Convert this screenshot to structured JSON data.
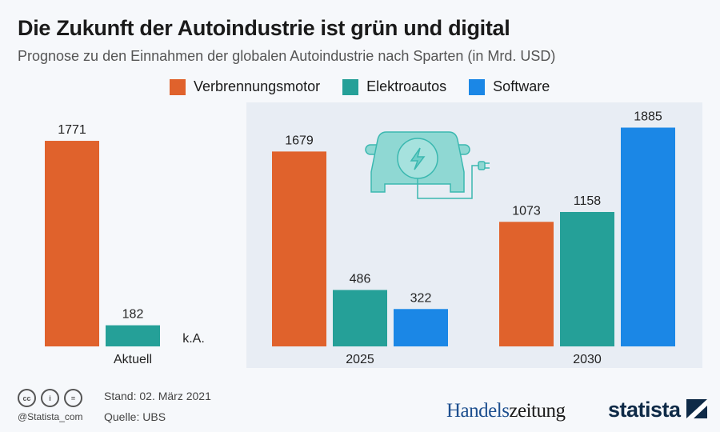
{
  "header": {
    "title": "Die Zukunft der Autoindustrie ist grün und digital",
    "subtitle": "Prognose zu den Einnahmen der globalen Autoindustrie nach Sparten (in Mrd. USD)"
  },
  "chart_data": {
    "type": "bar",
    "categories": [
      "Aktuell",
      "2025",
      "2030"
    ],
    "series": [
      {
        "name": "Verbrennungsmotor",
        "color": "#e0622c",
        "values": [
          1771,
          1679,
          1073
        ]
      },
      {
        "name": "Elektroautos",
        "color": "#25a098",
        "values": [
          182,
          486,
          1158
        ]
      },
      {
        "name": "Software",
        "color": "#1b87e6",
        "values": [
          null,
          322,
          1885
        ]
      }
    ],
    "missing_label": "k.A.",
    "ylim": [
      0,
      1885
    ],
    "grid": false,
    "legend": "top",
    "highlight_panel_color": "#e8edf4"
  },
  "footer": {
    "date": "Stand: 02. März 2021",
    "source": "Quelle: UBS",
    "handle": "@Statista_com",
    "cc_icons": [
      "cc-icon",
      "by-icon",
      "nd-icon"
    ],
    "cc_labels": [
      "cc",
      "i",
      "="
    ],
    "brand1a": "Handels",
    "brand1b": "zeitung",
    "brand2": "statista"
  }
}
